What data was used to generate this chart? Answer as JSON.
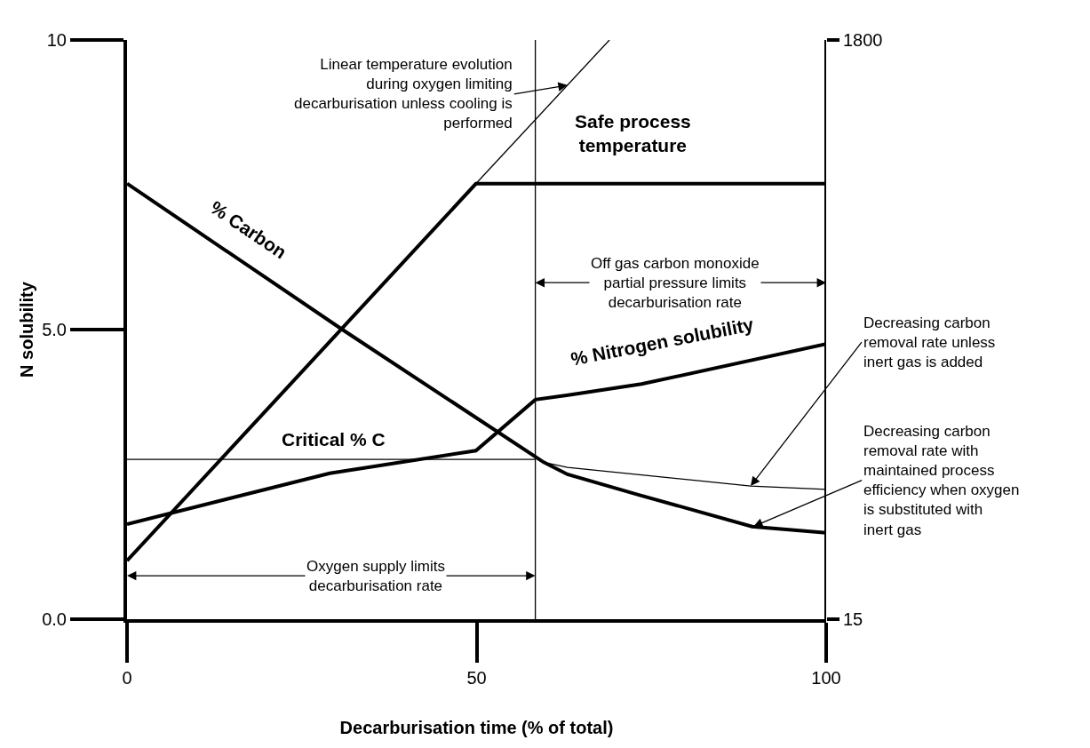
{
  "chart_data": {
    "type": "line",
    "xlabel": "Decarburisation time (% of total)",
    "ylabel": "N solubility",
    "xlim": [
      0,
      100
    ],
    "xticks": [
      0,
      50,
      100
    ],
    "ylim": [
      0,
      10
    ],
    "yticks": [
      {
        "value": 0,
        "label": "0.0"
      },
      {
        "value": 5,
        "label": "5.0"
      },
      10
    ],
    "y2lim": [
      15,
      1800
    ],
    "y2ticks": [
      15,
      1800
    ],
    "series": [
      {
        "color": "#000000",
        "x": [
          0,
          30.8,
          59.6,
          63,
          73.1,
          89.4,
          100
        ],
        "values": [
          7.52,
          5.0,
          2.71,
          2.5,
          2.15,
          1.6,
          1.49
        ]
      },
      {
        "color": "#000000",
        "x": [
          59.6,
          63,
          89.2,
          100
        ],
        "values": [
          2.71,
          2.62,
          2.3,
          2.24
        ]
      },
      {
        "color": "#000000",
        "x": [
          0,
          58.4
        ],
        "values": [
          2.76,
          2.76
        ]
      },
      {
        "color": "#000000",
        "x": [
          0,
          29,
          49.9,
          58.4,
          63.1,
          73.6,
          100
        ],
        "values": [
          1.64,
          2.52,
          2.91,
          3.79,
          3.87,
          4.06,
          4.75
        ]
      },
      {
        "color": "#000000",
        "axis": "y2",
        "x": [
          0,
          49.9,
          100
        ],
        "values": [
          195,
          1357,
          1357
        ]
      },
      {
        "color": "#000000",
        "axis": "y2",
        "x": [
          49.9,
          69.0
        ],
        "values": [
          1357,
          1800
        ]
      }
    ],
    "ref_lines": [
      {
        "axis": "x",
        "value": 58.4,
        "color": "#000000"
      },
      {
        "axis": "x",
        "value": 100,
        "color": "#000000"
      }
    ],
    "annotations": [
      "% Carbon",
      "% Nitrogen solubility",
      "Safe process temperature",
      "Critical % C",
      {
        "text": "Oxygen supply limits decarburisation rate",
        "x": 58.4,
        "y": 0.75
      },
      {
        "text": "Off gas carbon monoxide partial pressure limits decarburisation rate",
        "x": 58.4,
        "y": 5.81
      },
      {
        "text": "Linear temperature evolution during oxygen limiting decarburisation unless cooling is performed",
        "x": 63,
        "y": 9.22
      },
      {
        "text": "Decreasing carbon removal rate unless inert gas is added",
        "x": 89.2,
        "y": 2.3
      },
      {
        "text": "Decreasing carbon removal rate with maintained process efficiency when oxygen is substituted with inert gas",
        "x": 89.6,
        "y": 1.6
      }
    ],
    "marker": "none",
    "line_style": "solid"
  }
}
